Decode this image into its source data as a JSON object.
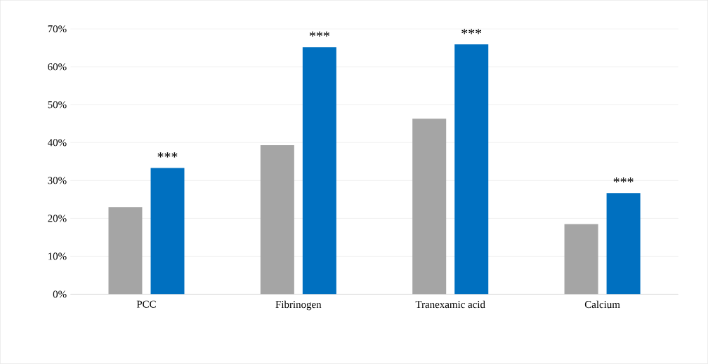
{
  "chart_data": {
    "type": "bar",
    "categories": [
      "PCC",
      "Fibrinogen",
      "Tranexamic acid",
      "Calcium"
    ],
    "series": [
      {
        "color": "#a5a5a5",
        "values": [
          23,
          39.3,
          46.3,
          18.5
        ]
      },
      {
        "color": "#0070c0",
        "values": [
          33.3,
          65.2,
          65.9,
          26.7
        ]
      }
    ],
    "ylim": [
      0,
      70
    ],
    "yticks": [
      {
        "value": 0,
        "label": "0%"
      },
      {
        "value": 10,
        "label": "10%"
      },
      {
        "value": 20,
        "label": "20%"
      },
      {
        "value": 30,
        "label": "30%"
      },
      {
        "value": 40,
        "label": "40%"
      },
      {
        "value": 50,
        "label": "50%"
      },
      {
        "value": 60,
        "label": "60%"
      },
      {
        "value": 70,
        "label": "70%"
      }
    ],
    "grid": "y",
    "annotations": [
      "***",
      "***",
      "***",
      "***"
    ]
  }
}
